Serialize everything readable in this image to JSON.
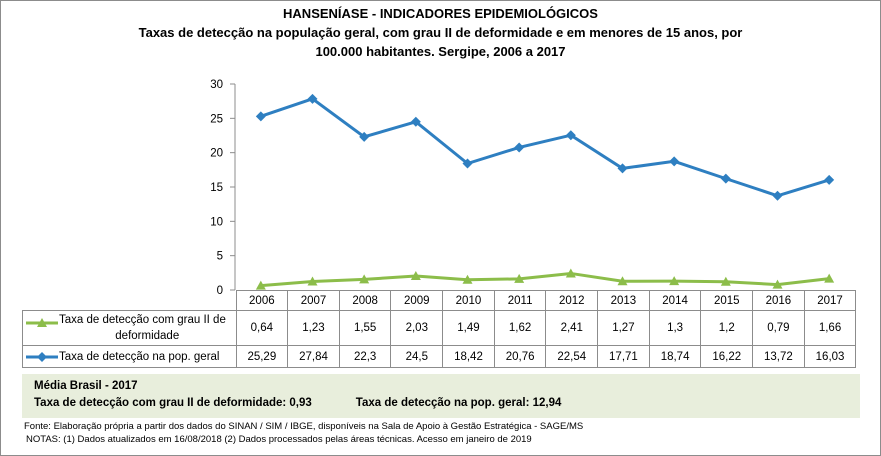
{
  "chart_data": {
    "type": "line",
    "title": "HANSENÍASE - INDICADORES EPIDEMIOLÓGICOS",
    "subtitle_lines": [
      "Taxas de detecção na população geral, com grau II de deformidade e em menores de 15 anos, por",
      "100.000 habitantes. Sergipe, 2006 a 2017"
    ],
    "categories": [
      "2006",
      "2007",
      "2008",
      "2009",
      "2010",
      "2011",
      "2012",
      "2013",
      "2014",
      "2015",
      "2016",
      "2017"
    ],
    "ylim": [
      0,
      30
    ],
    "yticks": [
      0,
      5,
      10,
      15,
      20,
      25,
      30
    ],
    "grid": false,
    "legend_placement": "data-table",
    "series": [
      {
        "name": "Taxa de detecção com grau II de deformidade",
        "name_lines": [
          "Taxa de detecção com grau II de",
          "deformidade"
        ],
        "color": "#8cbd4a",
        "marker": "triangle",
        "values": [
          0.64,
          1.23,
          1.55,
          2.03,
          1.49,
          1.62,
          2.41,
          1.27,
          1.3,
          1.2,
          0.79,
          1.66
        ],
        "labels": [
          "0,64",
          "1,23",
          "1,55",
          "2,03",
          "1,49",
          "1,62",
          "2,41",
          "1,27",
          "1,3",
          "1,2",
          "0,79",
          "1,66"
        ]
      },
      {
        "name": "Taxa de detecção na pop. geral",
        "color": "#2e7fc1",
        "marker": "diamond",
        "values": [
          25.29,
          27.84,
          22.3,
          24.5,
          18.42,
          20.76,
          22.54,
          17.71,
          18.74,
          16.22,
          13.72,
          16.03
        ],
        "labels": [
          "25,29",
          "27,84",
          "22,3",
          "24,5",
          "18,42",
          "20,76",
          "22,54",
          "17,71",
          "18,74",
          "16,22",
          "13,72",
          "16,03"
        ]
      }
    ]
  },
  "panel": {
    "heading": "Média Brasil - 2017",
    "item1": "Taxa de detecção com grau II de deformidade: 0,93",
    "item2": "Taxa de detecção na pop. geral: 12,94"
  },
  "footer": {
    "source": "Fonte:  Elaboração própria a partir dos dados do  SINAN / SIM / IBGE, disponíveis na Sala de Apoio à Gestão Estratégica -  SAGE/MS",
    "notes": "NOTAS: (1) Dados atualizados em 16/08/2018 (2) Dados processados pelas áreas técnicas. Acesso em janeiro de 2019"
  }
}
